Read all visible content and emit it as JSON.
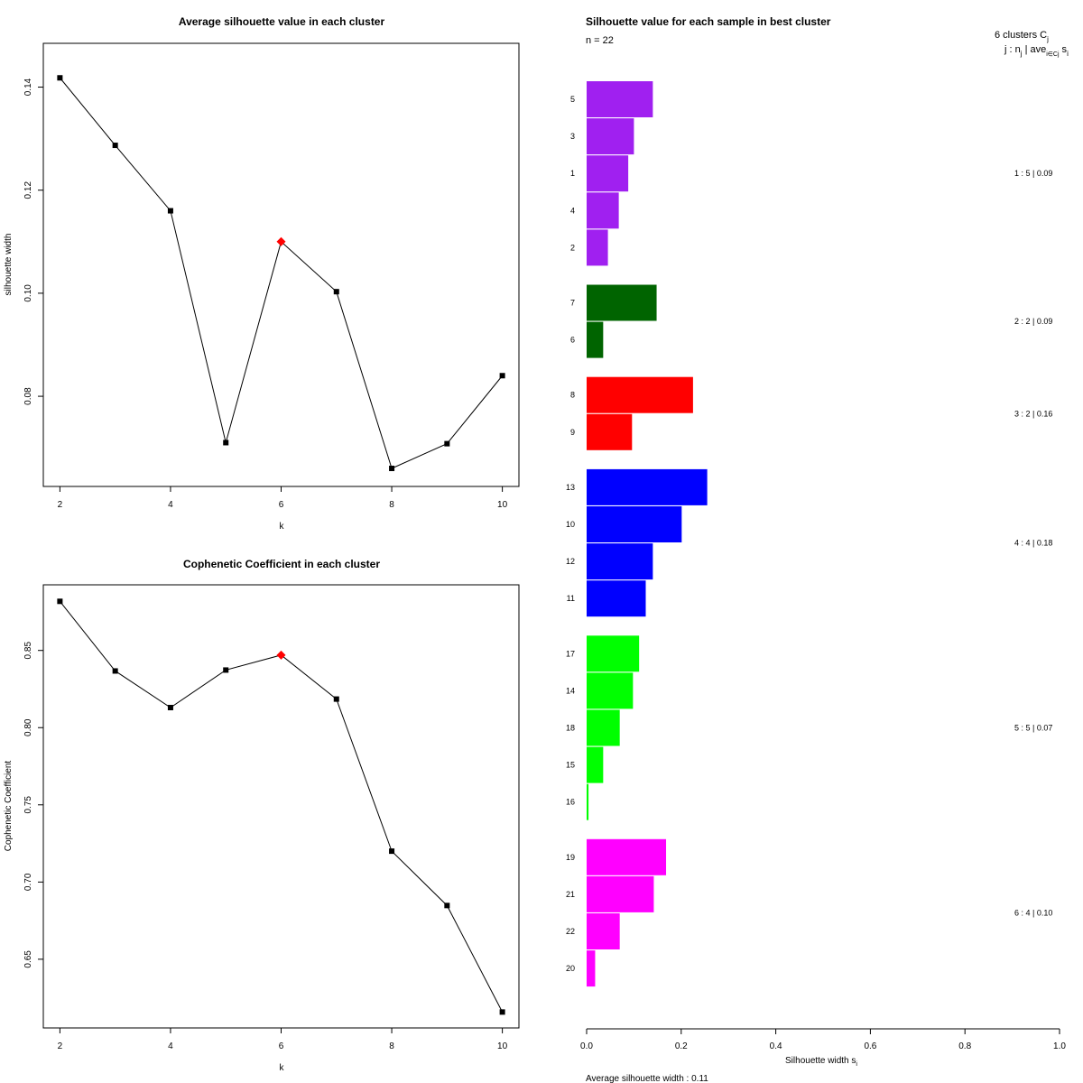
{
  "chart_data": [
    {
      "type": "line",
      "title": "Average silhouette value in each cluster",
      "xlabel": "k",
      "ylabel": "silhouette width",
      "x": [
        2,
        3,
        4,
        5,
        6,
        7,
        8,
        9,
        10
      ],
      "y": [
        0.1418,
        0.1287,
        0.116,
        0.071,
        0.11,
        0.1003,
        0.066,
        0.0708,
        0.084
      ],
      "highlight_k": 6,
      "xlim": [
        1.7,
        10.3
      ],
      "ylim": [
        0.0625,
        0.1485
      ],
      "xticks": [
        2,
        4,
        6,
        8,
        10
      ],
      "xtick_labels": [
        "2",
        "4",
        "6",
        "8",
        "10"
      ],
      "yticks": [
        0.08,
        0.1,
        0.12,
        0.14
      ],
      "ytick_labels": [
        "0.08",
        "0.10",
        "0.12",
        "0.14"
      ],
      "colors": {
        "line": "#000000",
        "point": "#000000",
        "highlight": "#ff0000"
      }
    },
    {
      "type": "line",
      "title": "Cophenetic Coefficient in each cluster",
      "xlabel": "k",
      "ylabel": "Cophenetic Coefficient",
      "x": [
        2,
        3,
        4,
        5,
        6,
        7,
        8,
        9,
        10
      ],
      "y": [
        0.8818,
        0.8367,
        0.813,
        0.8373,
        0.847,
        0.8185,
        0.72,
        0.6848,
        0.6158
      ],
      "highlight_k": 6,
      "xlim": [
        1.7,
        10.3
      ],
      "ylim": [
        0.6055,
        0.8925
      ],
      "xticks": [
        2,
        4,
        6,
        8,
        10
      ],
      "xtick_labels": [
        "2",
        "4",
        "6",
        "8",
        "10"
      ],
      "yticks": [
        0.65,
        0.7,
        0.75,
        0.8,
        0.85
      ],
      "ytick_labels": [
        "0.65",
        "0.70",
        "0.75",
        "0.80",
        "0.85"
      ],
      "colors": {
        "line": "#000000",
        "point": "#000000",
        "highlight": "#ff0000"
      }
    },
    {
      "type": "bar",
      "orientation": "horizontal",
      "title": "Silhouette value for each sample in best cluster",
      "subtitle": "n = 22",
      "header_line1": "6 clusters C",
      "header_line1_sub": "j",
      "header_line2": "j : n",
      "header_line2_sub": "j",
      "header_line2_rest": " | ave",
      "header_line2_sub2": "i∈Cj",
      "header_line2_tail": " s",
      "header_line2_sub3": "i",
      "xlabel": "Silhouette width s",
      "xlabel_sub": "i",
      "footer": "Average silhouette width :  0.11",
      "xlim": [
        0,
        1
      ],
      "xticks": [
        0,
        0.2,
        0.4,
        0.6,
        0.8,
        1.0
      ],
      "xtick_labels": [
        "0.0",
        "0.2",
        "0.4",
        "0.6",
        "0.8",
        "1.0"
      ],
      "clusters": [
        {
          "id": 1,
          "size": 5,
          "avg": "0.09",
          "summary": "1 :  5  |  0.09",
          "color": "#a020f0",
          "samples": [
            {
              "label": "5",
              "value": 0.14
            },
            {
              "label": "3",
              "value": 0.1
            },
            {
              "label": "1",
              "value": 0.088
            },
            {
              "label": "4",
              "value": 0.068
            },
            {
              "label": "2",
              "value": 0.045
            }
          ]
        },
        {
          "id": 2,
          "size": 2,
          "avg": "0.09",
          "summary": "2 :  2  |  0.09",
          "color": "#006400",
          "samples": [
            {
              "label": "7",
              "value": 0.148
            },
            {
              "label": "6",
              "value": 0.035
            }
          ]
        },
        {
          "id": 3,
          "size": 2,
          "avg": "0.16",
          "summary": "3 :  2  |  0.16",
          "color": "#ff0000",
          "samples": [
            {
              "label": "8",
              "value": 0.225
            },
            {
              "label": "9",
              "value": 0.096
            }
          ]
        },
        {
          "id": 4,
          "size": 4,
          "avg": "0.18",
          "summary": "4 :  4  |  0.18",
          "color": "#0000ff",
          "samples": [
            {
              "label": "13",
              "value": 0.255
            },
            {
              "label": "10",
              "value": 0.201
            },
            {
              "label": "12",
              "value": 0.14
            },
            {
              "label": "11",
              "value": 0.125
            }
          ]
        },
        {
          "id": 5,
          "size": 5,
          "avg": "0.07",
          "summary": "5 :  5  |  0.07",
          "color": "#00ff00",
          "samples": [
            {
              "label": "17",
              "value": 0.111
            },
            {
              "label": "14",
              "value": 0.098
            },
            {
              "label": "18",
              "value": 0.07
            },
            {
              "label": "15",
              "value": 0.035
            },
            {
              "label": "16",
              "value": 0.004
            }
          ]
        },
        {
          "id": 6,
          "size": 4,
          "avg": "0.10",
          "summary": "6 :  4  |  0.10",
          "color": "#ff00ff",
          "samples": [
            {
              "label": "19",
              "value": 0.168
            },
            {
              "label": "21",
              "value": 0.142
            },
            {
              "label": "22",
              "value": 0.07
            },
            {
              "label": "20",
              "value": 0.018
            }
          ]
        }
      ]
    }
  ]
}
